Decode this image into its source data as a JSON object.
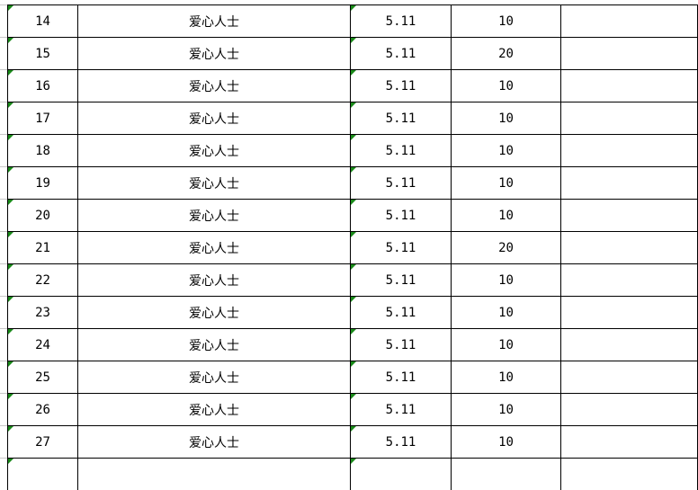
{
  "rows": [
    {
      "no": "14",
      "name": "爱心人士",
      "date": "5.11",
      "amount": "10",
      "note": ""
    },
    {
      "no": "15",
      "name": "爱心人士",
      "date": "5.11",
      "amount": "20",
      "note": ""
    },
    {
      "no": "16",
      "name": "爱心人士",
      "date": "5.11",
      "amount": "10",
      "note": ""
    },
    {
      "no": "17",
      "name": "爱心人士",
      "date": "5.11",
      "amount": "10",
      "note": ""
    },
    {
      "no": "18",
      "name": "爱心人士",
      "date": "5.11",
      "amount": "10",
      "note": ""
    },
    {
      "no": "19",
      "name": "爱心人士",
      "date": "5.11",
      "amount": "10",
      "note": ""
    },
    {
      "no": "20",
      "name": "爱心人士",
      "date": "5.11",
      "amount": "10",
      "note": ""
    },
    {
      "no": "21",
      "name": "爱心人士",
      "date": "5.11",
      "amount": "20",
      "note": ""
    },
    {
      "no": "22",
      "name": "爱心人士",
      "date": "5.11",
      "amount": "10",
      "note": ""
    },
    {
      "no": "23",
      "name": "爱心人士",
      "date": "5.11",
      "amount": "10",
      "note": ""
    },
    {
      "no": "24",
      "name": "爱心人士",
      "date": "5.11",
      "amount": "10",
      "note": ""
    },
    {
      "no": "25",
      "name": "爱心人士",
      "date": "5.11",
      "amount": "10",
      "note": ""
    },
    {
      "no": "26",
      "name": "爱心人士",
      "date": "5.11",
      "amount": "10",
      "note": ""
    },
    {
      "no": "27",
      "name": "爱心人士",
      "date": "5.11",
      "amount": "10",
      "note": ""
    },
    {
      "no": "",
      "name": "",
      "date": "",
      "amount": "",
      "note": ""
    }
  ],
  "colors": {
    "grid": "#000000",
    "error_marker": "#1a8a1a"
  }
}
